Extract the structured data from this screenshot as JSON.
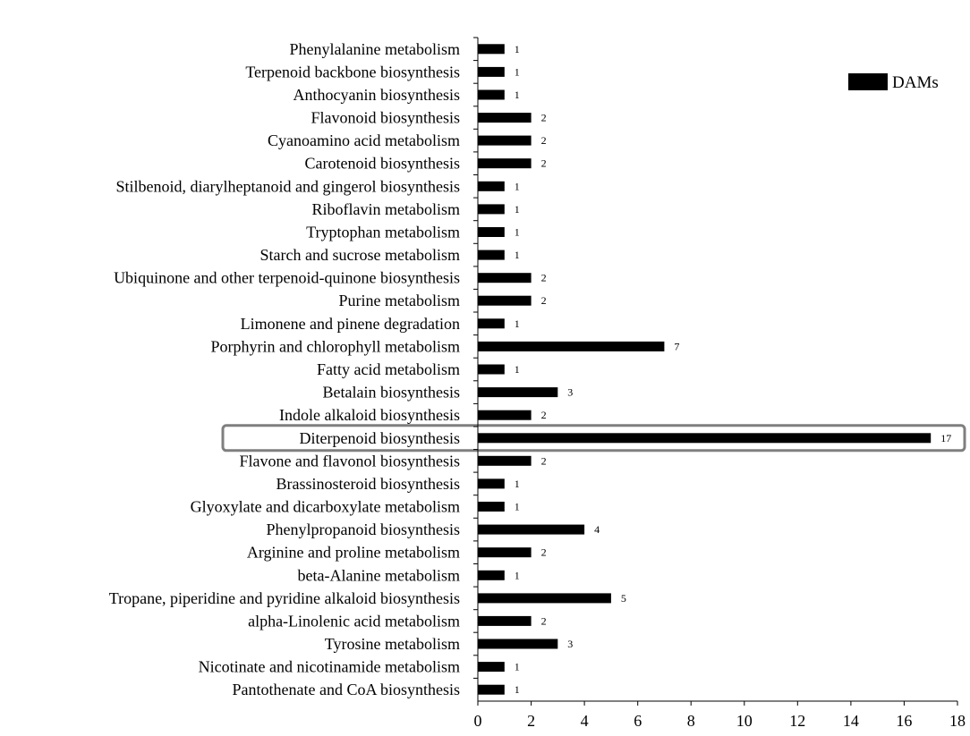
{
  "chart_data": {
    "type": "bar",
    "orientation": "horizontal",
    "categories": [
      "Phenylalanine metabolism",
      "Terpenoid backbone biosynthesis",
      "Anthocyanin biosynthesis",
      "Flavonoid biosynthesis",
      "Cyanoamino acid metabolism",
      "Carotenoid biosynthesis",
      "Stilbenoid, diarylheptanoid and gingerol biosynthesis",
      "Riboflavin metabolism",
      "Tryptophan metabolism",
      "Starch and sucrose metabolism",
      "Ubiquinone and other terpenoid-quinone biosynthesis",
      "Purine metabolism",
      "Limonene and pinene degradation",
      "Porphyrin and chlorophyll metabolism",
      "Fatty acid metabolism",
      "Betalain biosynthesis",
      "Indole alkaloid biosynthesis",
      "Diterpenoid biosynthesis",
      "Flavone and flavonol biosynthesis",
      "Brassinosteroid biosynthesis",
      "Glyoxylate and dicarboxylate metabolism",
      "Phenylpropanoid biosynthesis",
      "Arginine and proline metabolism",
      "beta-Alanine metabolism",
      "Tropane, piperidine and pyridine alkaloid biosynthesis",
      "alpha-Linolenic acid metabolism",
      "Tyrosine metabolism",
      "Nicotinate and nicotinamide metabolism",
      "Pantothenate and CoA biosynthesis"
    ],
    "series": [
      {
        "name": "DAMs",
        "values": [
          1,
          1,
          1,
          2,
          2,
          2,
          1,
          1,
          1,
          1,
          2,
          2,
          1,
          7,
          1,
          3,
          2,
          17,
          2,
          1,
          1,
          4,
          2,
          1,
          5,
          2,
          3,
          1,
          1
        ]
      }
    ],
    "xlim": [
      0,
      18
    ],
    "xticks": [
      0,
      2,
      4,
      6,
      8,
      10,
      12,
      14,
      16,
      18
    ],
    "highlighted_category": "Diterpenoid biosynthesis",
    "legend_position": "top-right",
    "grid": false,
    "bar_color": "#000000",
    "highlight_color": "#7f7f7f"
  }
}
